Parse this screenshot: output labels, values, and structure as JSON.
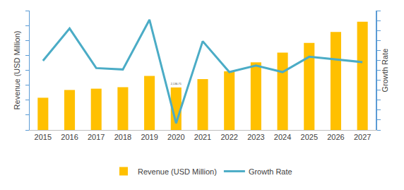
{
  "chart_data": {
    "type": "bar",
    "categories": [
      "2015",
      "2016",
      "2017",
      "2018",
      "2019",
      "2020",
      "2021",
      "2022",
      "2023",
      "2024",
      "2025",
      "2026",
      "2027"
    ],
    "series": [
      {
        "name": "Revenue (USD Million)",
        "type": "bar",
        "color": "#ffc000",
        "values": [
          1620,
          2010,
          2075,
          2150,
          2720,
          2136.71,
          2560,
          2950,
          3400,
          3890,
          4375,
          4925,
          5445
        ],
        "value_labels": [
          null,
          null,
          null,
          null,
          null,
          "2,136.71",
          null,
          null,
          null,
          null,
          null,
          null,
          null
        ]
      },
      {
        "name": "Growth Rate",
        "type": "line",
        "axis": "y2",
        "color": "#4bacc6",
        "values": [
          9.8,
          26,
          6.1,
          5.4,
          30.4,
          -21.6,
          19.6,
          4.1,
          7.4,
          4.1,
          11.8,
          10.5,
          9.1
        ]
      }
    ],
    "y_label": "Revenue (USD Million)",
    "y2_label": "Growth Rate",
    "ylim": [
      0,
      6000
    ],
    "yticks": [
      0,
      750,
      1500,
      2250,
      3000,
      3750,
      4500,
      5250,
      6000
    ],
    "y2lim": [
      -25,
      35
    ],
    "y2ticks": [
      -25,
      -20,
      -15,
      -10,
      -5,
      0,
      5,
      10,
      15,
      20,
      25,
      30,
      35
    ],
    "tick_labels": "x",
    "grid": false,
    "legend": "bottom"
  }
}
